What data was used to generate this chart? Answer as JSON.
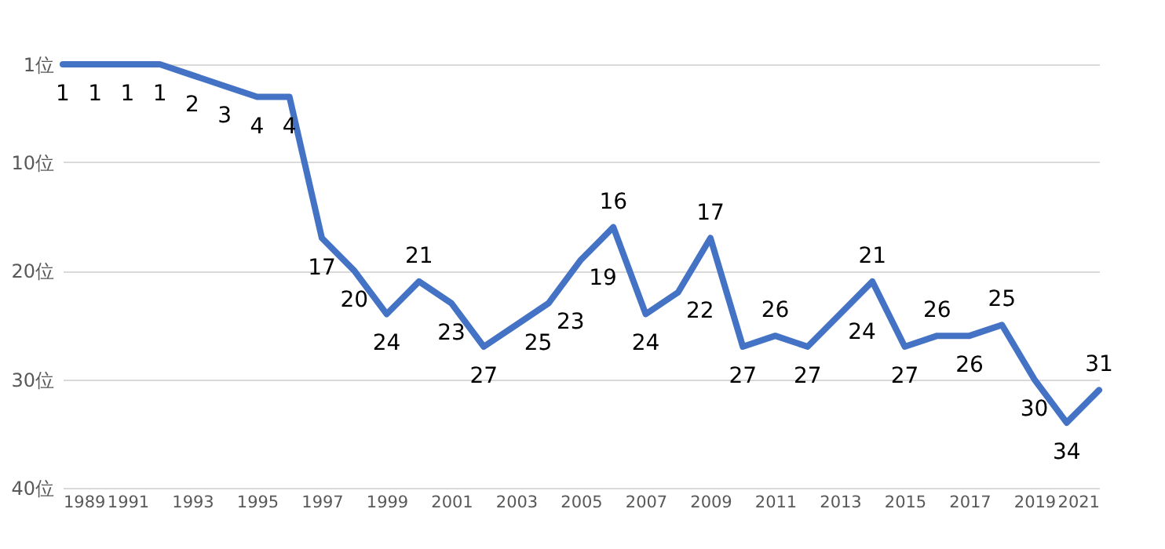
{
  "chart_data": {
    "type": "line",
    "x": [
      1989,
      1990,
      1991,
      1992,
      1993,
      1994,
      1995,
      1996,
      1997,
      1998,
      1999,
      2000,
      2001,
      2002,
      2003,
      2004,
      2005,
      2006,
      2007,
      2008,
      2009,
      2010,
      2011,
      2012,
      2013,
      2014,
      2015,
      2016,
      2017,
      2018,
      2019,
      2020,
      2021
    ],
    "series": [
      {
        "color": "#4472c4",
        "values": [
          1,
          1,
          1,
          1,
          2,
          3,
          4,
          4,
          17,
          20,
          24,
          21,
          23,
          27,
          25,
          23,
          19,
          16,
          24,
          22,
          17,
          27,
          26,
          27,
          24,
          21,
          27,
          26,
          26,
          25,
          30,
          34,
          31
        ]
      }
    ],
    "xlim": [
      1989,
      2021
    ],
    "xticks": [
      1989,
      1991,
      1993,
      1995,
      1997,
      1999,
      2001,
      2003,
      2005,
      2007,
      2009,
      2011,
      2013,
      2015,
      2017,
      2019,
      2021
    ],
    "ylim": [
      40,
      1
    ],
    "yticks": [
      {
        "value": 1,
        "label": "1位"
      },
      {
        "value": 10,
        "label": "10位"
      },
      {
        "value": 20,
        "label": "20位"
      },
      {
        "value": 30,
        "label": "30位"
      },
      {
        "value": 40,
        "label": "40位"
      }
    ],
    "grid": "y",
    "data_labels": true,
    "marker": "none",
    "line_style": "solid"
  }
}
